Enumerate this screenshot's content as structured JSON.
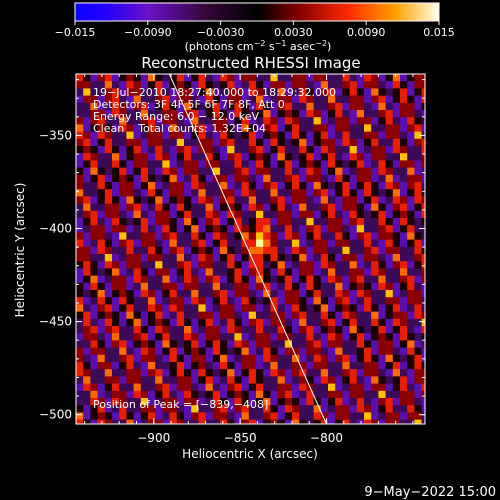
{
  "chart_data": {
    "type": "heatmap",
    "title": "Reconstructed RHESSI Image",
    "xlabel": "Heliocentric X (arcsec)",
    "ylabel": "Heliocentric Y (arcsec)",
    "xlim": [
      -945,
      -743
    ],
    "ylim": [
      -505,
      -317
    ],
    "x_ticks": [
      -900,
      -850,
      -800
    ],
    "x_tick_labels": [
      "−900",
      "−850",
      "−800"
    ],
    "y_ticks": [
      -350,
      -400,
      -450,
      -500
    ],
    "y_tick_labels": [
      "−350",
      "−400",
      "−450",
      "−500"
    ],
    "colorbar": {
      "range": [
        -0.015,
        0.015
      ],
      "ticks": [
        -0.015,
        -0.009,
        -0.003,
        0.003,
        0.009,
        0.015
      ],
      "tick_labels": [
        "−0.015",
        "−0.0090",
        "−0.0030",
        "0.0030",
        "0.0090",
        "0.015"
      ],
      "units_text": "(photons cm",
      "units_exp1": "−2",
      "units_mid": " s",
      "units_exp2": "−1",
      "units_end": " asec",
      "units_exp3": "−2",
      "units_close": ")"
    },
    "annotations": {
      "time": "19−Jul−2010 18:27:40.000 to 18:29:32.000",
      "detectors": "Detectors: 3F 4F 5F 6F 7F 8F, Att 0",
      "energy": "Energy Range: 6.0 − 12.0 keV",
      "clean": "Clean    Total counts: 1.32E+04",
      "peak": "Position of Peak = [−839,−408]"
    },
    "peak_position": [
      -839,
      -408
    ],
    "limb_line": [
      [
        -891,
        -317
      ],
      [
        -800,
        -505
      ]
    ]
  },
  "footer": {
    "date": "9−May−2022 15:00"
  }
}
